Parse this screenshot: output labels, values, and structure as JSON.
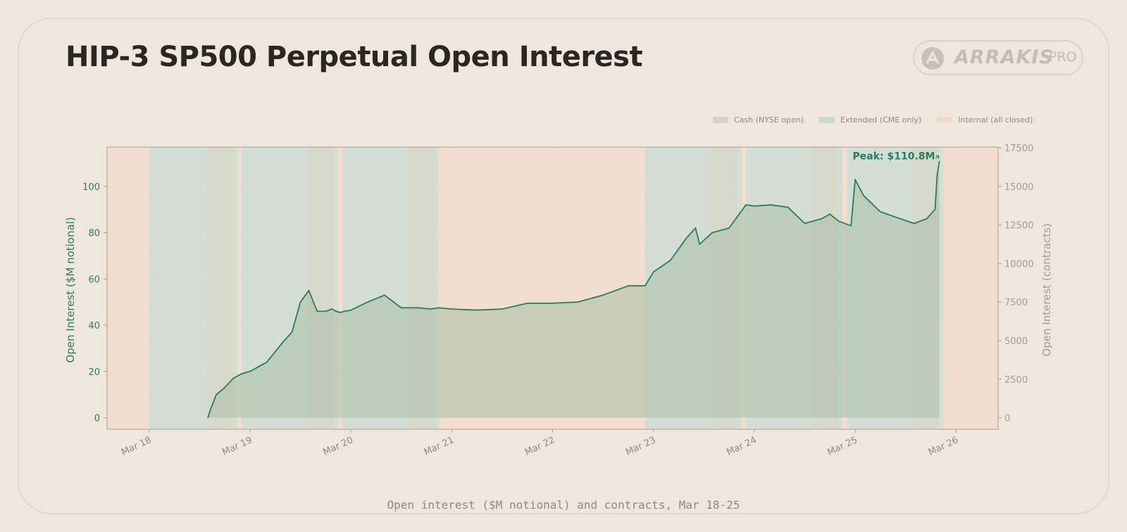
{
  "title": "HIP-3 SP500 Perpetual Open Interest",
  "logo": {
    "brand": "ARRAKIS",
    "suffix": "PRO",
    "icon": "arrakis-logo-icon"
  },
  "caption": "Open interest ($M notional) and contracts, Mar 18-25",
  "colors": {
    "line": "#2e7a5e",
    "fill": "#a8bfa5",
    "cash": "#cfd6c3",
    "extended": "#c9dbd3",
    "internal": "#f3dac8",
    "left_axis": "#2e7a5e",
    "right_axis": "#a39d96",
    "background": "#efe6de"
  },
  "chart_data": {
    "type": "area",
    "xlabel": "",
    "ylabel": "Open Interest ($M notional)",
    "y2label": "Open Interest (contracts)",
    "ylim": [
      -5,
      117
    ],
    "y2lim": [
      -750,
      17550
    ],
    "yticks": [
      0,
      20,
      40,
      60,
      80,
      100
    ],
    "y2ticks": [
      0,
      2500,
      5000,
      7500,
      10000,
      12500,
      15000,
      17500
    ],
    "xlim": [
      "Mar 17 14:00",
      "Mar 26 10:00"
    ],
    "xticks": [
      "Mar 18",
      "Mar 19",
      "Mar 20",
      "Mar 21",
      "Mar 22",
      "Mar 23",
      "Mar 24",
      "Mar 25",
      "Mar 26"
    ],
    "grid": true,
    "legend": [
      {
        "label": "Cash (NYSE open)",
        "key": "cash"
      },
      {
        "label": "Extended (CME only)",
        "key": "extended"
      },
      {
        "label": "Internal (all closed)",
        "key": "internal"
      }
    ],
    "legend_position": "top-right",
    "annotation": {
      "text": "Peak: $110.8M",
      "x": "Mar 25 20:00",
      "y": 110.8
    },
    "sessions": [
      {
        "type": "internal",
        "start": "Mar 17 14:00",
        "end": "Mar 18 00:00"
      },
      {
        "type": "extended",
        "start": "Mar 18 00:00",
        "end": "Mar 18 13:30"
      },
      {
        "type": "cash",
        "start": "Mar 18 13:30",
        "end": "Mar 18 20:00"
      },
      {
        "type": "extended",
        "start": "Mar 18 20:00",
        "end": "Mar 18 21:00"
      },
      {
        "type": "internal",
        "start": "Mar 18 21:00",
        "end": "Mar 18 22:00"
      },
      {
        "type": "extended",
        "start": "Mar 18 22:00",
        "end": "Mar 19 13:30"
      },
      {
        "type": "cash",
        "start": "Mar 19 13:30",
        "end": "Mar 19 20:00"
      },
      {
        "type": "extended",
        "start": "Mar 19 20:00",
        "end": "Mar 19 21:00"
      },
      {
        "type": "internal",
        "start": "Mar 19 21:00",
        "end": "Mar 19 22:00"
      },
      {
        "type": "extended",
        "start": "Mar 19 22:00",
        "end": "Mar 20 13:30"
      },
      {
        "type": "cash",
        "start": "Mar 20 13:30",
        "end": "Mar 20 20:00"
      },
      {
        "type": "extended",
        "start": "Mar 20 20:00",
        "end": "Mar 20 21:00"
      },
      {
        "type": "internal",
        "start": "Mar 20 21:00",
        "end": "Mar 22 22:00"
      },
      {
        "type": "extended",
        "start": "Mar 22 22:00",
        "end": "Mar 23 13:30"
      },
      {
        "type": "cash",
        "start": "Mar 23 13:30",
        "end": "Mar 23 20:00"
      },
      {
        "type": "extended",
        "start": "Mar 23 20:00",
        "end": "Mar 23 21:00"
      },
      {
        "type": "internal",
        "start": "Mar 23 21:00",
        "end": "Mar 23 22:00"
      },
      {
        "type": "extended",
        "start": "Mar 23 22:00",
        "end": "Mar 24 13:30"
      },
      {
        "type": "cash",
        "start": "Mar 24 13:30",
        "end": "Mar 24 20:00"
      },
      {
        "type": "extended",
        "start": "Mar 24 20:00",
        "end": "Mar 24 21:00"
      },
      {
        "type": "internal",
        "start": "Mar 24 21:00",
        "end": "Mar 24 22:00"
      },
      {
        "type": "extended",
        "start": "Mar 24 22:00",
        "end": "Mar 25 13:30"
      },
      {
        "type": "cash",
        "start": "Mar 25 13:30",
        "end": "Mar 25 20:00"
      },
      {
        "type": "extended",
        "start": "Mar 25 20:00",
        "end": "Mar 25 21:00"
      },
      {
        "type": "internal",
        "start": "Mar 25 21:00",
        "end": "Mar 26 10:00"
      }
    ],
    "series": [
      {
        "name": "Open Interest ($M notional)",
        "x": [
          "Mar 18 14:00",
          "Mar 18 14:30",
          "Mar 18 16:00",
          "Mar 18 18:00",
          "Mar 18 20:00",
          "Mar 18 22:00",
          "Mar 19 00:00",
          "Mar 19 04:00",
          "Mar 19 08:00",
          "Mar 19 10:00",
          "Mar 19 12:00",
          "Mar 19 14:00",
          "Mar 19 16:00",
          "Mar 19 18:00",
          "Mar 19 19:30",
          "Mar 19 20:30",
          "Mar 19 21:30",
          "Mar 19 22:30",
          "Mar 20 00:00",
          "Mar 20 04:00",
          "Mar 20 08:00",
          "Mar 20 12:00",
          "Mar 20 16:00",
          "Mar 20 19:00",
          "Mar 20 21:00",
          "Mar 21 00:00",
          "Mar 21 06:00",
          "Mar 21 12:00",
          "Mar 21 18:00",
          "Mar 22 00:00",
          "Mar 22 06:00",
          "Mar 22 12:00",
          "Mar 22 18:00",
          "Mar 22 22:00",
          "Mar 23 00:00",
          "Mar 23 04:00",
          "Mar 23 08:00",
          "Mar 23 10:00",
          "Mar 23 11:00",
          "Mar 23 14:00",
          "Mar 23 18:00",
          "Mar 23 22:00",
          "Mar 24 00:00",
          "Mar 24 04:00",
          "Mar 24 08:00",
          "Mar 24 12:00",
          "Mar 24 16:00",
          "Mar 24 18:00",
          "Mar 24 20:00",
          "Mar 24 23:00",
          "Mar 25 00:00",
          "Mar 25 02:00",
          "Mar 25 06:00",
          "Mar 25 10:00",
          "Mar 25 14:00",
          "Mar 25 17:00",
          "Mar 25 19:00",
          "Mar 25 19:30",
          "Mar 25 20:00"
        ],
        "values": [
          0,
          3,
          10,
          13,
          17,
          19,
          20,
          24,
          33,
          37,
          50,
          55,
          46,
          46,
          47,
          46,
          45.5,
          46,
          46.5,
          50,
          53,
          47.5,
          47.5,
          47,
          47.5,
          47,
          46.5,
          47,
          49.5,
          49.5,
          50,
          53,
          57,
          57,
          63,
          68,
          78,
          82,
          75,
          80,
          82,
          92,
          91.5,
          92,
          91,
          84,
          86,
          88,
          85,
          83,
          103,
          96,
          89,
          86.5,
          84,
          86,
          90,
          105,
          110.8
        ]
      }
    ]
  }
}
